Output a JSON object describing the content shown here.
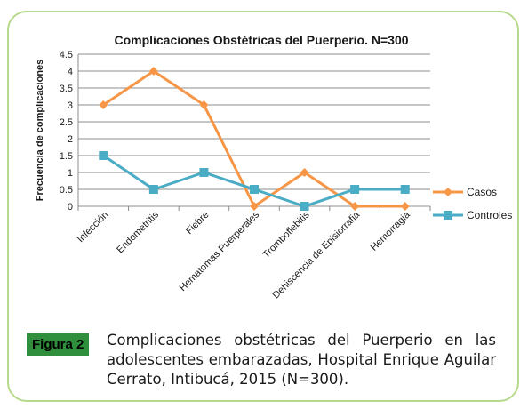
{
  "figure": {
    "label": "Figura 2",
    "caption": "Complicaciones obstétricas del Puerperio en las adolescentes embarazadas, Hospital Enrique Aguilar Cerrato, Intibucá, 2015 (N=300)."
  },
  "chart_data": {
    "type": "line",
    "title": "Complicaciones Obstétricas del Puerperio. N=300",
    "xlabel": "",
    "ylabel": "Frecuencia de complicaciones",
    "ylim": [
      0,
      4.5
    ],
    "yticks": [
      "0",
      "0.5",
      "1",
      "1.5",
      "2",
      "2.5",
      "3",
      "3.5",
      "4",
      "4.5"
    ],
    "grid": true,
    "legend_position": "right",
    "categories": [
      "Infección",
      "Endometritis",
      "Fiebre",
      "Hematomas Puerperales",
      "Tromboflebitis",
      "Dehiscencia de Episiorrafia",
      "Hemorragia"
    ],
    "series": [
      {
        "name": "Casos",
        "values": [
          3,
          4,
          3,
          0,
          1,
          0,
          0
        ],
        "color": "#f79646",
        "marker": "diamond"
      },
      {
        "name": "Controles",
        "values": [
          1.5,
          0.5,
          1,
          0.5,
          0,
          0.5,
          0.5
        ],
        "color": "#4bacc6",
        "marker": "square"
      }
    ]
  }
}
